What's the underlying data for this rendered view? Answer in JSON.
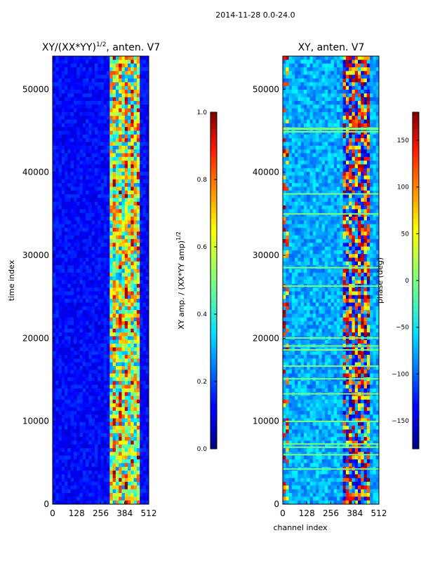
{
  "suptitle": "2014-11-28 0.0-24.0",
  "chart_data": [
    {
      "type": "heatmap",
      "title": "XY/(XX*YY)",
      "title_exp": "1/2",
      "title_suffix": ", anten. V7",
      "xlabel": "",
      "ylabel": "time index",
      "xlim": [
        0,
        512
      ],
      "ylim": [
        0,
        54000
      ],
      "xticks": [
        "0",
        "128",
        "256",
        "384",
        "512"
      ],
      "yticks": [
        "0",
        "10000",
        "20000",
        "30000",
        "40000",
        "50000"
      ],
      "colormap": "jet",
      "colorbar": {
        "label": "XY amp. / (XX*YY amp)",
        "label_exp": "1/2",
        "range": [
          0.0,
          1.0
        ],
        "ticks": [
          "0.0",
          "0.2",
          "0.4",
          "0.6",
          "0.8",
          "1.0"
        ]
      }
    },
    {
      "type": "heatmap",
      "title": "XY, anten. V7",
      "xlabel": "channel index",
      "ylabel": "",
      "xlim": [
        0,
        512
      ],
      "ylim": [
        0,
        54000
      ],
      "xticks": [
        "0",
        "128",
        "256",
        "384",
        "512"
      ],
      "yticks": [
        "0",
        "10000",
        "20000",
        "30000",
        "40000",
        "50000"
      ],
      "colormap": "jet",
      "colorbar": {
        "label": "phase (deg)",
        "range": [
          -180,
          180
        ],
        "ticks": [
          "150",
          "100",
          "50",
          "0",
          "−50",
          "−100",
          "−150"
        ],
        "tick_values": [
          150,
          100,
          50,
          0,
          -50,
          -100,
          -150
        ]
      }
    }
  ]
}
